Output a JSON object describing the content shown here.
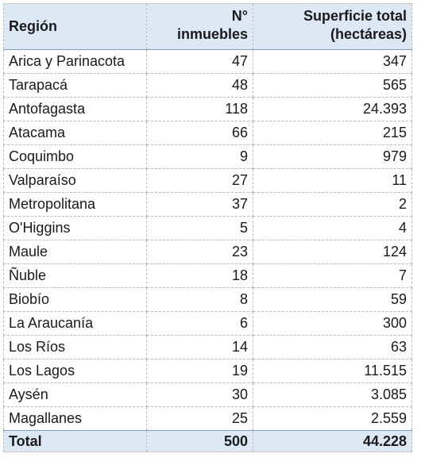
{
  "header": {
    "region": "Región",
    "count_line1": "N°",
    "count_line2": "inmuebles",
    "area_line1": "Superficie total",
    "area_line2": "(hectáreas)"
  },
  "rows": [
    {
      "region": "Arica y Parinacota",
      "count": "47",
      "area": "347"
    },
    {
      "region": "Tarapacá",
      "count": "48",
      "area": "565"
    },
    {
      "region": "Antofagasta",
      "count": "118",
      "area": "24.393"
    },
    {
      "region": "Atacama",
      "count": "66",
      "area": "215"
    },
    {
      "region": "Coquimbo",
      "count": "9",
      "area": "979"
    },
    {
      "region": "Valparaíso",
      "count": "27",
      "area": "11"
    },
    {
      "region": "Metropolitana",
      "count": "37",
      "area": "2"
    },
    {
      "region": "O'Higgins",
      "count": "5",
      "area": "4"
    },
    {
      "region": "Maule",
      "count": "23",
      "area": "124"
    },
    {
      "region": "Ñuble",
      "count": "18",
      "area": "7"
    },
    {
      "region": "Biobío",
      "count": "8",
      "area": "59"
    },
    {
      "region": "La Araucanía",
      "count": "6",
      "area": "300"
    },
    {
      "region": "Los Ríos",
      "count": "14",
      "area": "63"
    },
    {
      "region": "Los Lagos",
      "count": "19",
      "area": "11.515"
    },
    {
      "region": "Aysén",
      "count": "30",
      "area": "3.085"
    },
    {
      "region": "Magallanes",
      "count": "25",
      "area": "2.559"
    }
  ],
  "total": {
    "label": "Total",
    "count": "500",
    "area": "44.228"
  },
  "colors": {
    "header_fill": "#dce9f5",
    "grid_line": "#b8b8b8"
  }
}
